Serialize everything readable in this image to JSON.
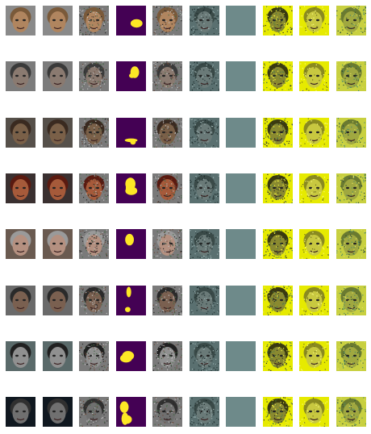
{
  "grid": {
    "rows": 8,
    "columns": 10,
    "column_kinds": [
      "face",
      "face",
      "noisy-face",
      "mask",
      "noisy-face",
      "noisy-teal",
      "blank-teal",
      "yellow-noisy",
      "yellow-face",
      "yellow-green"
    ],
    "row_tones": [
      {
        "skin": "#b0855f",
        "hair": "#7a5a3a",
        "bg": "#8a8a8a"
      },
      {
        "skin": "#8a7a70",
        "hair": "#3a3a3a",
        "bg": "#7c7c7c"
      },
      {
        "skin": "#7a6048",
        "hair": "#3a2a20",
        "bg": "#56504a"
      },
      {
        "skin": "#a65a3a",
        "hair": "#5a1a10",
        "bg": "#3a3030"
      },
      {
        "skin": "#b49080",
        "hair": "#9a9a9a",
        "bg": "#6a5a50"
      },
      {
        "skin": "#7a6050",
        "hair": "#2a2a2a",
        "bg": "#6a6a6a"
      },
      {
        "skin": "#909090",
        "hair": "#202020",
        "bg": "#5a6a6a"
      },
      {
        "skin": "#707070",
        "hair": "#303030",
        "bg": "#101820"
      }
    ]
  },
  "colors": {
    "mask_bg": "#440154",
    "mask_fg": "#fde725",
    "teal": "#6e8a8a",
    "yellow": "#e6ea00",
    "yellow_green": "#c8d040"
  }
}
